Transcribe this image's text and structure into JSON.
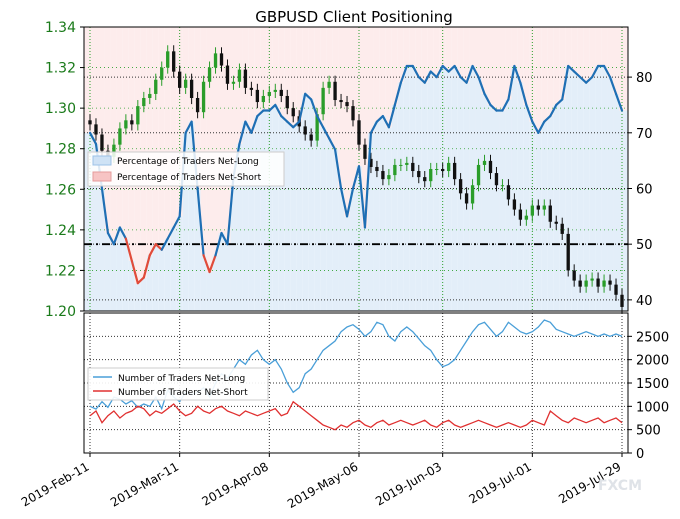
{
  "chart_data": [
    {
      "type": "candlestick+line",
      "title": "GBPUSD Client Positioning",
      "x_ticks": [
        "2019-Feb-11",
        "2019-Mar-11",
        "2019-Apr-08",
        "2019-May-06",
        "2019-Jun-03",
        "2019-Jul-01",
        "2019-Jul-29"
      ],
      "left_axis": {
        "ticks": [
          "1.20",
          "1.22",
          "1.24",
          "1.26",
          "1.28",
          "1.30",
          "1.32",
          "1.34"
        ],
        "ylim": [
          1.2,
          1.34
        ],
        "color": "#1a7a1a"
      },
      "right_axis": {
        "ticks": [
          "40",
          "50",
          "60",
          "70",
          "80"
        ],
        "ylim": [
          38,
          89
        ]
      },
      "legend": {
        "placement": "center-left",
        "entries": [
          "Percentage of Traders Net-Long",
          "Percentage of Traders Net-Short"
        ]
      },
      "price": [
        1.292,
        1.287,
        1.279,
        1.276,
        1.282,
        1.29,
        1.294,
        1.292,
        1.301,
        1.305,
        1.307,
        1.314,
        1.32,
        1.328,
        1.318,
        1.31,
        1.314,
        1.305,
        1.298,
        1.313,
        1.32,
        1.327,
        1.321,
        1.312,
        1.313,
        1.319,
        1.31,
        1.309,
        1.303,
        1.306,
        1.308,
        1.309,
        1.306,
        1.3,
        1.296,
        1.291,
        1.287,
        1.284,
        1.297,
        1.31,
        1.313,
        1.304,
        1.303,
        1.301,
        1.294,
        1.282,
        1.275,
        1.271,
        1.269,
        1.265,
        1.267,
        1.272,
        1.272,
        1.273,
        1.269,
        1.266,
        1.264,
        1.27,
        1.27,
        1.269,
        1.273,
        1.265,
        1.258,
        1.253,
        1.262,
        1.272,
        1.274,
        1.268,
        1.262,
        1.262,
        1.255,
        1.25,
        1.245,
        1.247,
        1.252,
        1.25,
        1.252,
        1.244,
        1.243,
        1.238,
        1.22,
        1.215,
        1.212,
        1.215,
        1.216,
        1.212,
        1.215,
        1.213,
        1.208,
        1.202
      ],
      "pct_net_long": [
        70,
        68,
        60,
        52,
        50,
        53,
        51,
        47,
        43,
        44,
        48,
        50,
        49,
        51,
        53,
        55,
        70,
        72,
        60,
        48,
        45,
        48,
        52,
        50,
        62,
        68,
        72,
        70,
        73,
        74,
        74,
        75,
        73,
        72,
        71,
        72,
        77,
        76,
        73,
        71,
        69,
        67,
        60,
        55,
        60,
        64,
        53,
        70,
        72,
        73,
        71,
        75,
        79,
        82,
        82,
        80,
        79,
        81,
        80,
        82,
        81,
        82,
        80,
        79,
        82,
        80,
        77,
        75,
        74,
        74,
        76,
        82,
        79,
        75,
        72,
        70,
        72,
        73,
        75,
        76,
        82,
        81,
        80,
        79,
        80,
        82,
        82,
        80,
        77,
        74
      ],
      "ratio_ref_line": 50
    },
    {
      "type": "line",
      "right_axis": {
        "ticks": [
          "0",
          "500",
          "1000",
          "1500",
          "2000",
          "2500"
        ],
        "ylim": [
          0,
          3000
        ]
      },
      "legend": {
        "placement": "center-left"
      },
      "series": [
        {
          "name": "Number of Traders Net-Long",
          "color": "#4a9fd8",
          "values": [
            1000,
            940,
            1100,
            980,
            1200,
            1150,
            1050,
            1120,
            980,
            1050,
            1000,
            1200,
            950,
            1350,
            1200,
            1100,
            1300,
            1250,
            1300,
            1400,
            1200,
            1500,
            1700,
            1600,
            1800,
            2000,
            1900,
            2100,
            2200,
            2000,
            1900,
            2000,
            1800,
            1500,
            1300,
            1400,
            1700,
            1800,
            2000,
            2200,
            2300,
            2400,
            2600,
            2700,
            2750,
            2650,
            2500,
            2600,
            2800,
            2750,
            2500,
            2400,
            2600,
            2700,
            2600,
            2450,
            2300,
            2200,
            2000,
            1850,
            1900,
            2000,
            2200,
            2400,
            2600,
            2750,
            2800,
            2650,
            2500,
            2600,
            2800,
            2700,
            2600,
            2550,
            2600,
            2700,
            2850,
            2800,
            2650,
            2600,
            2550,
            2500,
            2550,
            2600,
            2550,
            2500,
            2550,
            2500,
            2550,
            2500
          ]
        },
        {
          "name": "Number of Traders Net-Short",
          "color": "#e03030",
          "values": [
            800,
            900,
            650,
            800,
            900,
            750,
            850,
            900,
            1000,
            950,
            800,
            900,
            850,
            950,
            1050,
            900,
            800,
            850,
            1000,
            900,
            850,
            950,
            1000,
            900,
            850,
            800,
            900,
            850,
            800,
            850,
            900,
            950,
            800,
            850,
            1100,
            1000,
            900,
            800,
            700,
            600,
            550,
            500,
            600,
            550,
            650,
            700,
            600,
            550,
            650,
            700,
            600,
            650,
            700,
            650,
            600,
            650,
            700,
            600,
            550,
            650,
            700,
            600,
            550,
            600,
            650,
            700,
            650,
            600,
            550,
            600,
            650,
            600,
            550,
            600,
            700,
            650,
            600,
            900,
            800,
            700,
            650,
            750,
            700,
            650,
            700,
            750,
            650,
            700,
            750,
            650
          ]
        }
      ]
    }
  ],
  "watermark": "FXCM"
}
